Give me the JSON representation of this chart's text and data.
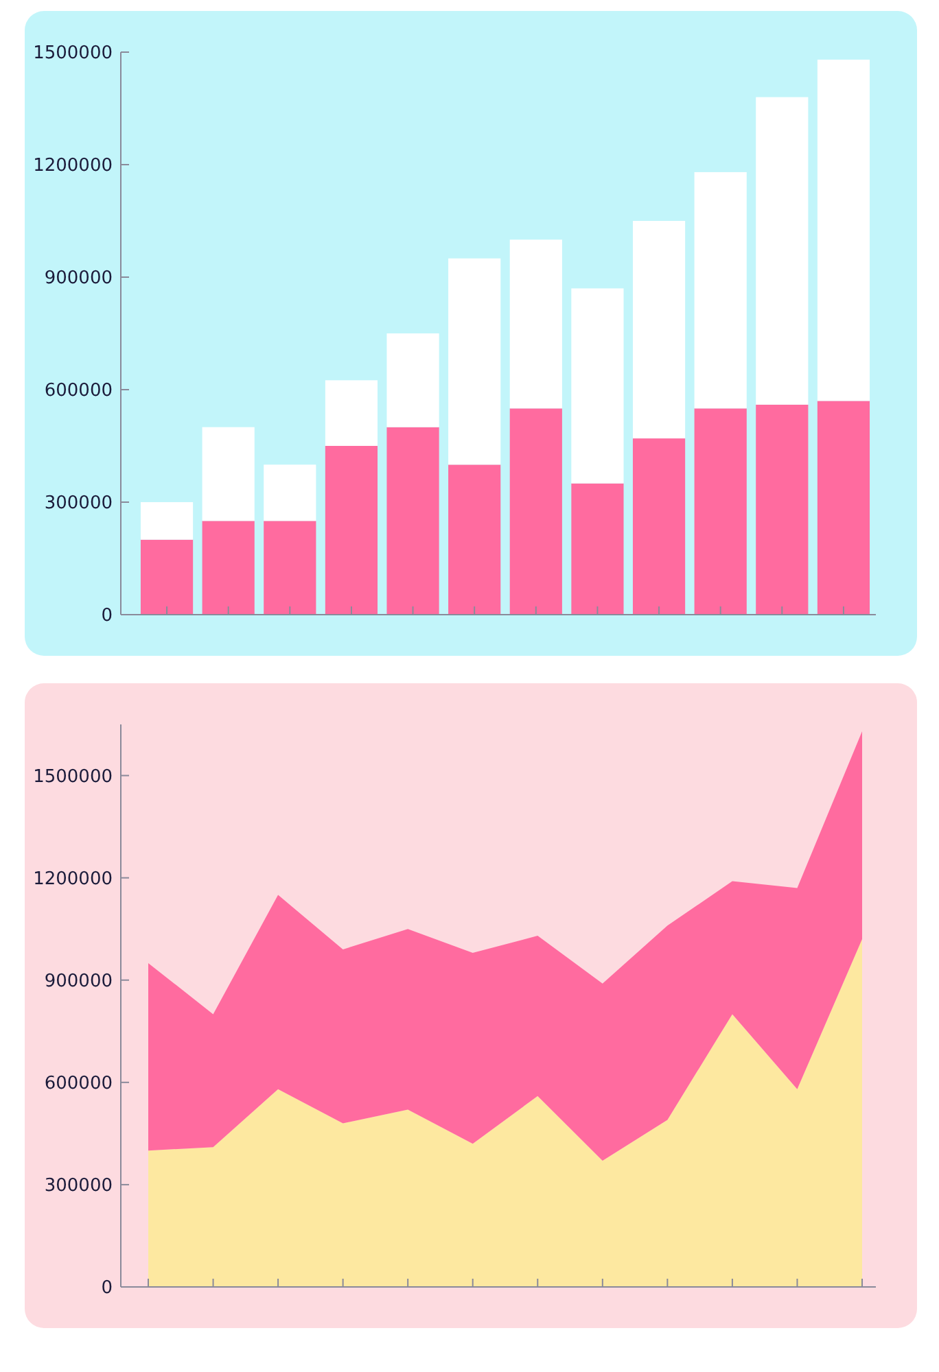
{
  "chart_data": [
    {
      "type": "bar",
      "stacked": true,
      "tick_labels": "y",
      "categories": [
        null,
        null,
        null,
        null,
        null,
        null,
        null,
        null,
        null,
        null,
        null,
        null
      ],
      "series": [
        {
          "color": "#ff6b9f",
          "values": [
            200000,
            250000,
            250000,
            450000,
            500000,
            400000,
            550000,
            350000,
            470000,
            550000,
            560000,
            570000
          ]
        },
        {
          "color": "#ffffff",
          "values": [
            100000,
            250000,
            150000,
            175000,
            250000,
            550000,
            450000,
            520000,
            580000,
            630000,
            820000,
            910000
          ]
        }
      ],
      "ylim": [
        0,
        1500000
      ],
      "yticks": [
        0,
        300000,
        600000,
        900000,
        1200000,
        1500000
      ]
    },
    {
      "type": "area",
      "stacked": true,
      "tick_labels": "y",
      "categories": [
        null,
        null,
        null,
        null,
        null,
        null,
        null,
        null,
        null,
        null,
        null,
        null
      ],
      "series": [
        {
          "color": "#fde8a0",
          "values": [
            400000,
            410000,
            580000,
            480000,
            520000,
            420000,
            560000,
            370000,
            490000,
            800000,
            580000,
            1020000
          ]
        },
        {
          "color": "#ff6b9f",
          "values": [
            550000,
            390000,
            570000,
            510000,
            530000,
            560000,
            470000,
            520000,
            570000,
            390000,
            590000,
            610000
          ]
        }
      ],
      "ylim": [
        0,
        1650000
      ],
      "yticks": [
        0,
        300000,
        600000,
        900000,
        1200000,
        1500000
      ]
    }
  ]
}
